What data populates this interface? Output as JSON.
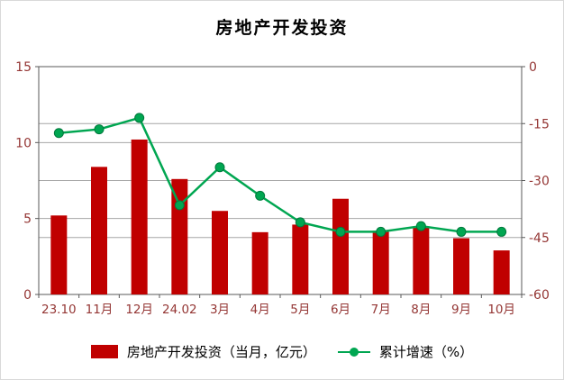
{
  "title": "房地产开发投资",
  "legend": {
    "bar_label": "房地产开发投资（当月，亿元）",
    "line_label": "累计增速（%）"
  },
  "colors": {
    "bar": "#C00000",
    "line": "#00A651",
    "line_edge": "#00793C",
    "axis_text": "#943634",
    "axis_line": "#595959",
    "grid": "#A6A6A6",
    "frame_border": "#D9D9D9"
  },
  "chart_data": {
    "type": "bar+line combo",
    "title": "房地产开发投资",
    "categories": [
      "23.10",
      "11月",
      "12月",
      "24.02",
      "3月",
      "4月",
      "5月",
      "6月",
      "7月",
      "8月",
      "9月",
      "10月"
    ],
    "series": [
      {
        "name": "房地产开发投资（当月，亿元）",
        "type": "bar",
        "axis": "left",
        "values": [
          5.2,
          8.4,
          10.2,
          7.6,
          5.5,
          4.1,
          4.6,
          6.3,
          4.2,
          4.4,
          3.7,
          2.9
        ]
      },
      {
        "name": "累计增速（%）",
        "type": "line",
        "axis": "right",
        "values": [
          -17.5,
          -16.5,
          -13.5,
          -36.5,
          -26.5,
          -34,
          -41,
          -43.5,
          -43.5,
          -42,
          -43.5,
          -43.5
        ]
      }
    ],
    "left_axis": {
      "min": 0,
      "max": 15,
      "ticks": [
        0,
        5,
        10,
        15
      ]
    },
    "right_axis": {
      "min": -60,
      "max": 0,
      "ticks": [
        0,
        -15,
        -30,
        -45,
        -60
      ]
    },
    "grid": "on",
    "legend_position": "bottom"
  }
}
